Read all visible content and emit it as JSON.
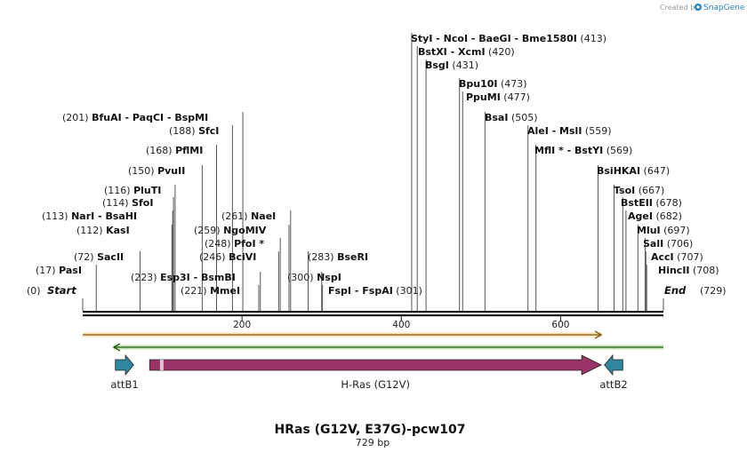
{
  "watermark": {
    "prefix": "Created by",
    "brand": "SnapGene"
  },
  "map": {
    "title": "HRas (G12V, E37G)-pcw107",
    "length_label": "729 bp",
    "length_bp": 729,
    "start_label": "Start",
    "start_pos": "(0)",
    "end_label": "End",
    "end_pos": "(729)"
  },
  "ticks": [
    200,
    400,
    600
  ],
  "enzyme_rows": [
    {
      "segments": [
        {
          "pos": "(413)",
          "text": "StyI  -  NcoI  -  BaeGI  -  Bme1580I",
          "cut": 413
        }
      ]
    },
    {
      "segments": [
        {
          "pos": "(420)",
          "text": "BstXI  -  XcmI",
          "cut": 420
        }
      ]
    },
    {
      "segments": [
        {
          "pos": "(431)",
          "text": "BsgI",
          "cut": 431
        }
      ]
    },
    {
      "segments": [
        {
          "pos": "(473)",
          "text": "Bpu10I",
          "cut": 473
        }
      ]
    },
    {
      "segments": [
        {
          "pos": "(477)",
          "text": "PpuMI",
          "cut": 477
        }
      ]
    },
    {
      "segments": [
        {
          "pos": "(505)",
          "text": "BsaI",
          "cut": 505
        },
        {
          "pos": "(201)",
          "text": "BfuAI  -  PaqCI  -  BspMI",
          "cut": 201
        }
      ]
    },
    {
      "segments": [
        {
          "pos": "(188)",
          "text": "SfcI",
          "cut": 188
        },
        {
          "pos": "(559)",
          "text": "AleI  -  MslI",
          "cut": 559
        }
      ]
    },
    {
      "segments": [
        {
          "pos": "(168)",
          "text": "PflMI",
          "cut": 168
        },
        {
          "pos": "(569)",
          "text": "MflI *  -  BstYI",
          "cut": 569
        }
      ]
    },
    {
      "segments": [
        {
          "pos": "(150)",
          "text": "PvuII",
          "cut": 150
        },
        {
          "pos": "(647)",
          "text": "BsiHKAI",
          "cut": 647
        }
      ]
    },
    {
      "segments": [
        {
          "pos": "(116)",
          "text": "PluTI",
          "cut": 116
        },
        {
          "pos": "(667)",
          "text": "TsoI",
          "cut": 667
        }
      ]
    },
    {
      "segments": [
        {
          "pos": "(114)",
          "text": "SfoI",
          "cut": 114
        },
        {
          "pos": "(678)",
          "text": "BstEII",
          "cut": 678
        }
      ]
    },
    {
      "segments": [
        {
          "pos": "(113)",
          "text": "NarI  -  BsaHI",
          "cut": 113
        },
        {
          "pos": "(261)",
          "text": "NaeI",
          "cut": 261
        },
        {
          "pos": "(682)",
          "text": "AgeI",
          "cut": 682
        }
      ]
    },
    {
      "segments": [
        {
          "pos": "(112)",
          "text": "KasI",
          "cut": 112
        },
        {
          "pos": "(259)",
          "text": "NgoMIV",
          "cut": 259
        },
        {
          "pos": "(697)",
          "text": "MluI",
          "cut": 697
        }
      ]
    },
    {
      "segments": [
        {
          "pos": "(248)",
          "text": "PfoI *",
          "cut": 248
        },
        {
          "pos": "(706)",
          "text": "SalI",
          "cut": 706
        }
      ]
    },
    {
      "segments": [
        {
          "pos": "(72)",
          "text": "SacII",
          "cut": 72
        },
        {
          "pos": "(246)",
          "text": "BciVI",
          "cut": 246
        },
        {
          "pos": "(283)",
          "text": "BseRI",
          "cut": 283
        },
        {
          "pos": "(707)",
          "text": "AccI",
          "cut": 707
        }
      ]
    },
    {
      "segments": [
        {
          "pos": "(17)",
          "text": "PasI",
          "cut": 17
        },
        {
          "pos": "(708)",
          "text": "HincII",
          "cut": 708
        }
      ]
    },
    {
      "segments": [
        {
          "pos": "(223)",
          "text": "Esp3I  -  BsmBI",
          "cut": 223
        },
        {
          "pos": "(300)",
          "text": "NspI",
          "cut": 300
        }
      ]
    },
    {
      "segments": [
        {
          "pos": "(221)",
          "text": "MmeI",
          "cut": 221
        },
        {
          "pos": "(301)",
          "text": "FspI  -  FspAI",
          "cut": 301
        }
      ]
    }
  ],
  "features": [
    {
      "name": "attB1",
      "start": 41,
      "end": 64,
      "dir": "fwd",
      "color": "#2e86a0"
    },
    {
      "name": "H-Ras (G12V)",
      "start": 84,
      "end": 651,
      "dir": "fwd",
      "color": "#993366"
    },
    {
      "name": "attB2",
      "start": 655,
      "end": 678,
      "dir": "rev",
      "color": "#2e86a0"
    }
  ],
  "orf_arrows": [
    {
      "start": 0,
      "end": 651,
      "dir": "fwd",
      "color": "#f5a623"
    },
    {
      "start": 39,
      "end": 729,
      "dir": "rev",
      "color": "#5cb82e"
    }
  ],
  "colors": {
    "backbone": "#1a1a1a",
    "label": "#111111",
    "cut_line": "#555555",
    "position": "#222222",
    "watermark_brand": "#2b83ba"
  }
}
